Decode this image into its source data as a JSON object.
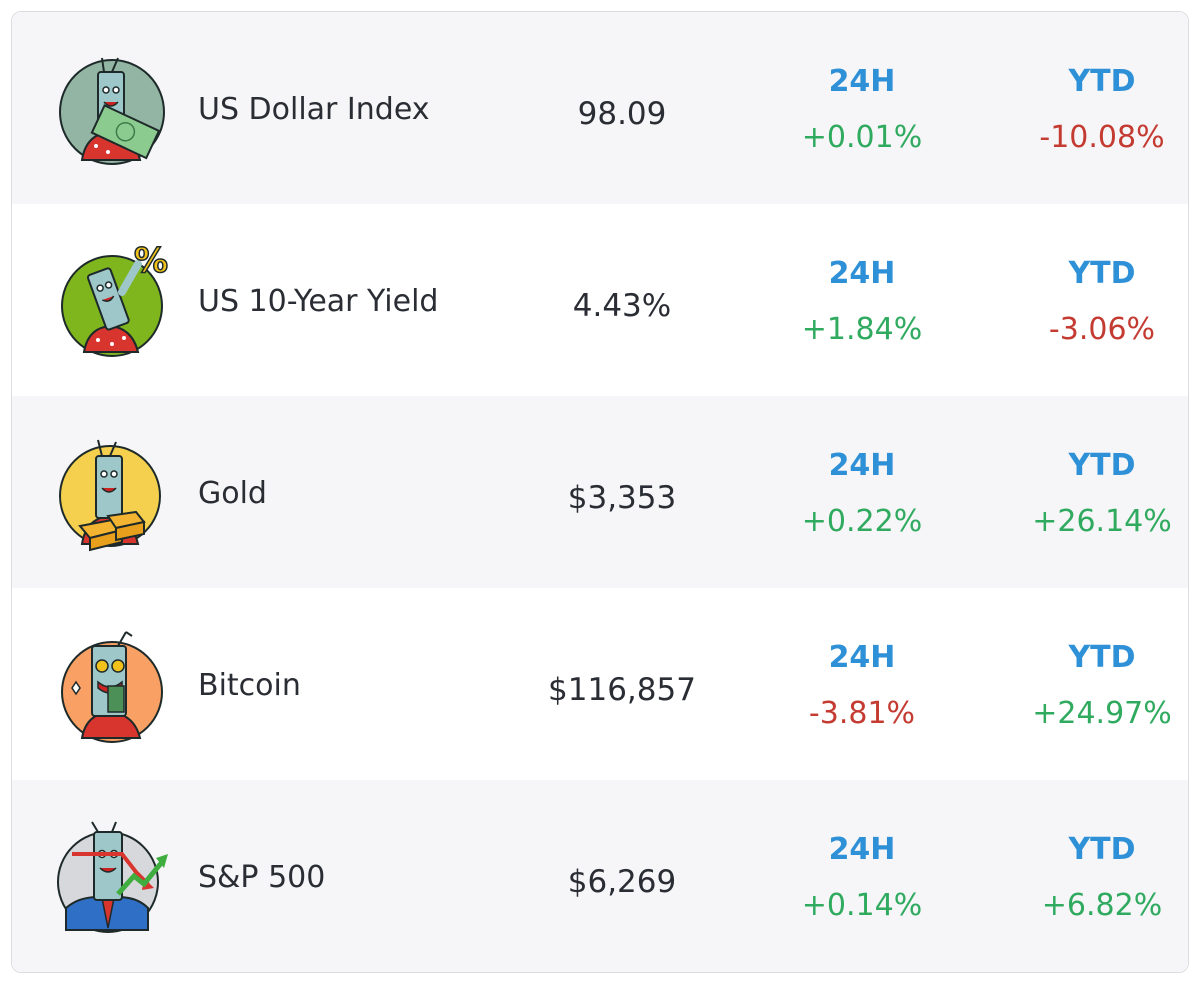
{
  "columns": {
    "change_24h_label": "24H",
    "change_ytd_label": "YTD"
  },
  "colors": {
    "header_blue": "#2e90d6",
    "positive_green": "#2faa5f",
    "negative_red": "#c43b32",
    "row_shaded": "#f6f6f8"
  },
  "assets": [
    {
      "name": "US Dollar Index",
      "price": "98.09",
      "change_24h": "+0.01%",
      "change_ytd": "-10.08%",
      "icon": "dollar-mascot-icon",
      "icon_bg": "#93b5a3"
    },
    {
      "name": "US 10-Year Yield",
      "price": "4.43%",
      "change_24h": "+1.84%",
      "change_ytd": "-3.06%",
      "icon": "yield-mascot-icon",
      "icon_bg": "#7fb61e"
    },
    {
      "name": "Gold",
      "price": "$3,353",
      "change_24h": "+0.22%",
      "change_ytd": "+26.14%",
      "icon": "gold-mascot-icon",
      "icon_bg": "#f5d04e"
    },
    {
      "name": "Bitcoin",
      "price": "$116,857",
      "change_24h": "-3.81%",
      "change_ytd": "+24.97%",
      "icon": "bitcoin-mascot-icon",
      "icon_bg": "#f9a064"
    },
    {
      "name": "S&P 500",
      "price": "$6,269",
      "change_24h": "+0.14%",
      "change_ytd": "+6.82%",
      "icon": "sp500-mascot-icon",
      "icon_bg": "#d7d8dc"
    }
  ]
}
